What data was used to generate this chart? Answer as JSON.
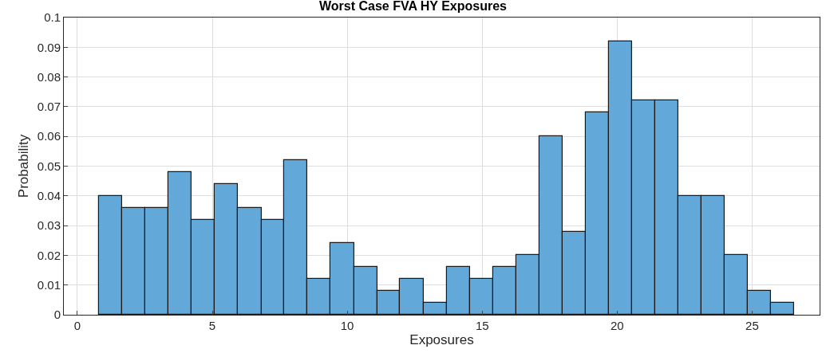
{
  "chart_data": {
    "type": "histogram",
    "title": "Worst Case FVA HY Exposures",
    "xlabel": "Exposures",
    "ylabel": "Probability",
    "bins": [
      0.81,
      1.67,
      2.53,
      3.38,
      4.24,
      5.1,
      5.96,
      6.82,
      7.67,
      8.53,
      9.39,
      10.25,
      11.11,
      11.96,
      12.82,
      13.68,
      14.54,
      15.4,
      16.25,
      17.11,
      17.97,
      18.83,
      19.69,
      20.54,
      21.4,
      22.26,
      23.12,
      23.98,
      24.83,
      25.69,
      26.55
    ],
    "values": [
      0.04,
      0.036,
      0.036,
      0.048,
      0.032,
      0.044,
      0.036,
      0.032,
      0.052,
      0.012,
      0.024,
      0.016,
      0.008,
      0.012,
      0.004,
      0.016,
      0.012,
      0.016,
      0.02,
      0.06,
      0.028,
      0.068,
      0.092,
      0.072,
      0.072,
      0.04,
      0.04,
      0.02,
      0.008,
      0.004
    ],
    "color": "#62a8d8",
    "xlim": [
      -0.5,
      27.5
    ],
    "xticks": [
      0,
      5,
      10,
      15,
      20,
      25
    ],
    "ylim": [
      0,
      0.1
    ],
    "yticks": [
      0,
      0.01,
      0.02,
      0.03,
      0.04,
      0.05,
      0.06,
      0.07,
      0.08,
      0.09,
      0.1
    ],
    "grid": true
  }
}
